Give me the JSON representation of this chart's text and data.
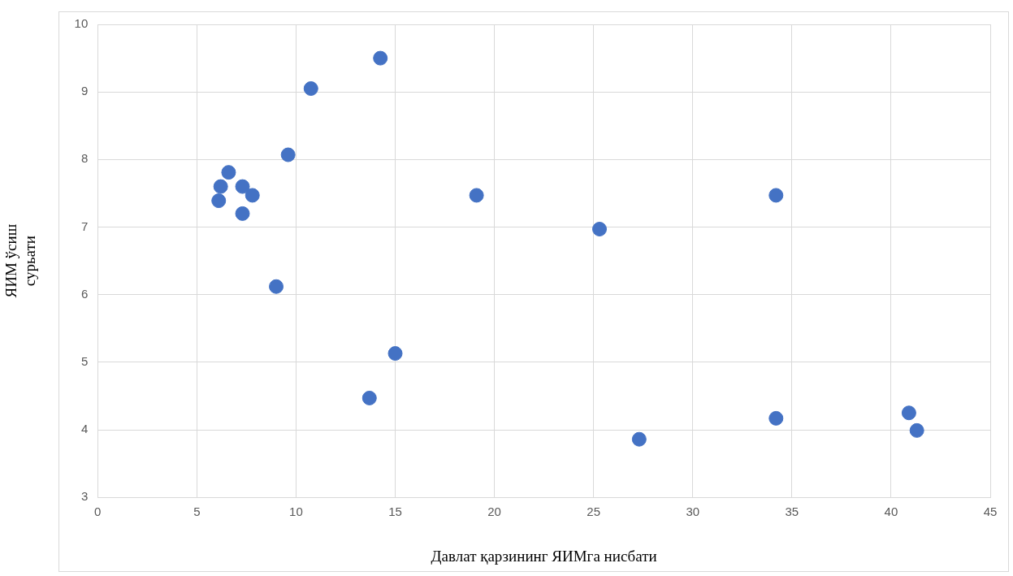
{
  "chart_data": {
    "type": "scatter",
    "xlabel": "Давлат қарзининг ЯИМга нисбати",
    "ylabel": "ЯИМ ўсиш\nсурьати",
    "x": [
      14.25,
      10.75,
      9.6,
      6.6,
      6.2,
      7.3,
      7.8,
      6.1,
      7.3,
      9.0,
      19.1,
      25.3,
      34.2,
      15.0,
      13.7,
      27.3,
      34.2,
      40.9,
      41.3
    ],
    "series": [
      {
        "color": "#4472c4",
        "values": [
          9.5,
          9.05,
          8.07,
          7.81,
          7.6,
          7.6,
          7.47,
          7.39,
          7.2,
          6.12,
          7.47,
          6.97,
          7.47,
          5.13,
          4.47,
          3.86,
          4.17,
          4.25,
          3.99
        ]
      }
    ],
    "xlim": [
      0,
      45
    ],
    "xticks": [
      0,
      5,
      10,
      15,
      20,
      25,
      30,
      35,
      40,
      45
    ],
    "ylim": [
      3,
      10
    ],
    "yticks": [
      3,
      4,
      5,
      6,
      7,
      8,
      9,
      10
    ],
    "grid": true,
    "legend": false,
    "marker": "circle"
  }
}
